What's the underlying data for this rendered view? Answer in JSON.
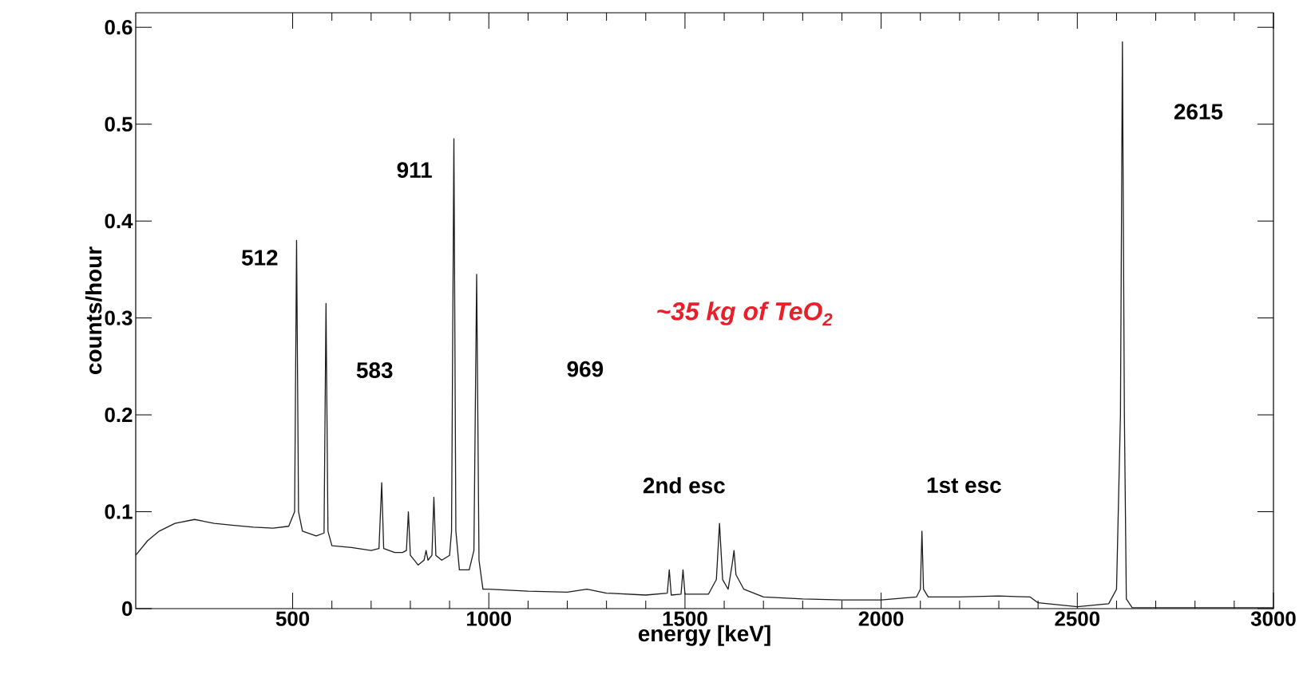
{
  "chart_data": {
    "type": "line",
    "xlabel": "energy [keV]",
    "ylabel": "counts/hour",
    "xlim": [
      100,
      3000
    ],
    "ylim": [
      0,
      0.615
    ],
    "xticks": [
      500,
      1000,
      1500,
      2000,
      2500,
      3000
    ],
    "yticks": [
      0,
      0.1,
      0.2,
      0.3,
      0.4,
      0.5,
      0.6
    ],
    "grid": false,
    "marker": "none",
    "line_style": "solid",
    "annotations": [
      "512",
      "583",
      "911",
      "969",
      "2nd esc",
      "1st esc",
      "2615",
      "~35 kg of TeO$_{2}$"
    ],
    "series": [
      {
        "color": "#1c1c1c",
        "x": [
          100,
          130,
          160,
          200,
          250,
          300,
          350,
          400,
          450,
          490,
          505,
          510,
          515,
          525,
          560,
          580,
          585,
          590,
          600,
          650,
          700,
          720,
          727,
          732,
          760,
          780,
          790,
          795,
          800,
          820,
          835,
          840,
          845,
          855,
          860,
          865,
          880,
          900,
          905,
          911,
          916,
          925,
          950,
          962,
          969,
          975,
          985,
          1000,
          1100,
          1200,
          1250,
          1300,
          1400,
          1455,
          1460,
          1465,
          1490,
          1495,
          1500,
          1560,
          1580,
          1588,
          1596,
          1610,
          1620,
          1625,
          1630,
          1650,
          1700,
          1800,
          1900,
          2000,
          2090,
          2100,
          2104,
          2108,
          2120,
          2200,
          2300,
          2380,
          2400,
          2500,
          2580,
          2600,
          2610,
          2615,
          2620,
          2625,
          2640,
          2800,
          3000
        ],
        "values": [
          0.055,
          0.07,
          0.08,
          0.088,
          0.092,
          0.088,
          0.086,
          0.084,
          0.083,
          0.085,
          0.1,
          0.38,
          0.1,
          0.08,
          0.075,
          0.078,
          0.315,
          0.08,
          0.065,
          0.063,
          0.06,
          0.062,
          0.13,
          0.062,
          0.058,
          0.058,
          0.06,
          0.1,
          0.055,
          0.045,
          0.05,
          0.06,
          0.05,
          0.055,
          0.115,
          0.055,
          0.05,
          0.055,
          0.08,
          0.485,
          0.08,
          0.04,
          0.04,
          0.06,
          0.345,
          0.05,
          0.02,
          0.02,
          0.018,
          0.017,
          0.02,
          0.016,
          0.014,
          0.016,
          0.04,
          0.014,
          0.015,
          0.04,
          0.015,
          0.015,
          0.03,
          0.088,
          0.03,
          0.02,
          0.045,
          0.06,
          0.035,
          0.02,
          0.012,
          0.01,
          0.009,
          0.009,
          0.012,
          0.02,
          0.08,
          0.02,
          0.012,
          0.012,
          0.013,
          0.012,
          0.006,
          0.002,
          0.005,
          0.02,
          0.2,
          0.585,
          0.2,
          0.01,
          0.001,
          0.001,
          0.001
        ]
      }
    ]
  }
}
